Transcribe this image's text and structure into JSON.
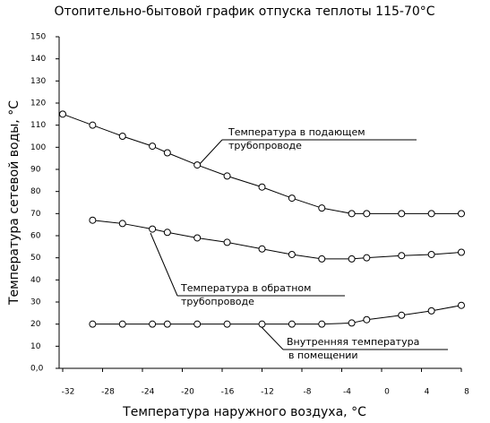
{
  "chart_data": {
    "type": "line",
    "title": "Отопительно-бытовой график отпуска теплоты 115-70°C",
    "xlabel": "Температура наружного воздуха, °C",
    "ylabel": "Температура сетевой воды, °C",
    "xlim": [
      -32,
      8
    ],
    "xticks": [
      -32,
      -28,
      -24,
      -20,
      -16,
      -12,
      -8,
      -4,
      0,
      4,
      8
    ],
    "ylim": [
      0,
      150
    ],
    "yticks": [
      {
        "value": 0,
        "label": "0,0"
      },
      10,
      20,
      30,
      40,
      50,
      60,
      70,
      80,
      90,
      100,
      110,
      120,
      130,
      140,
      150
    ],
    "color": "#000000",
    "series": [
      {
        "name": "Температура в подающем трубопроводе",
        "x": [
          -32,
          -29,
          -26,
          -23,
          -21.5,
          -18.5,
          -15.5,
          -12,
          -9,
          -6,
          -3,
          -1.5,
          2,
          5,
          8
        ],
        "values": [
          115,
          110,
          105,
          100.5,
          97.5,
          92,
          87,
          82,
          77,
          72.5,
          70,
          70,
          70,
          70,
          70
        ]
      },
      {
        "name": "Температура в обратном трубопроводе",
        "x": [
          -29,
          -26,
          -23,
          -21.5,
          -18.5,
          -15.5,
          -12,
          -9,
          -6,
          -3,
          -1.5,
          2,
          5,
          8
        ],
        "values": [
          67,
          65.5,
          63,
          61.5,
          59,
          57,
          54,
          51.5,
          49.5,
          49.5,
          50,
          51,
          51.5,
          52.5
        ]
      },
      {
        "name": "Внутренняя температура в помещении",
        "x": [
          -29,
          -26,
          -23,
          -21.5,
          -18.5,
          -15.5,
          -12,
          -9,
          -6,
          -3,
          -1.5,
          2,
          5,
          8
        ],
        "values": [
          20,
          20,
          20,
          20,
          20,
          20,
          20,
          20,
          20,
          20.5,
          22,
          24,
          26,
          28.5
        ]
      }
    ],
    "annotations": [
      [
        "Температура в подающем",
        "трубопроводе"
      ],
      [
        "Температура в обратном",
        "трубопроводе"
      ],
      [
        "Внутренняя температура",
        "в помещении"
      ]
    ]
  }
}
